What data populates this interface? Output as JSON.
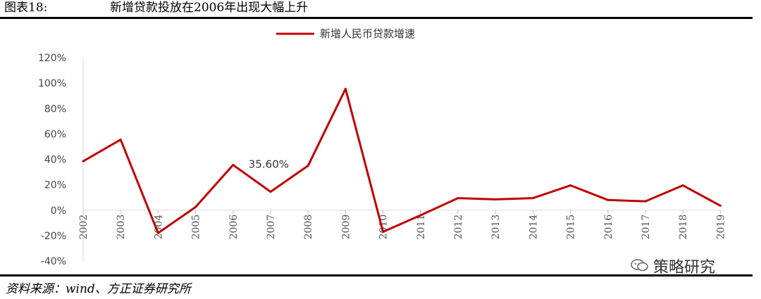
{
  "figure": {
    "label": "图表18:",
    "title": "新增贷款投放在2006年出现大幅上升"
  },
  "source": "资料来源：wind、方正证券研究所",
  "watermark": {
    "icon": "wechat-icon",
    "text": "策略研究"
  },
  "chart_data": {
    "type": "line",
    "series": [
      {
        "name": "新增人民币贷款增速",
        "color": "#c00000",
        "x": [
          "2002",
          "2003",
          "2004",
          "2005",
          "2006",
          "2007",
          "2008",
          "2009",
          "2010",
          "2011",
          "2012",
          "2013",
          "2014",
          "2015",
          "2016",
          "2017",
          "2018",
          "2019"
        ],
        "values": [
          38.5,
          55.5,
          -18,
          2.5,
          35.6,
          14.5,
          35,
          95.5,
          -17,
          -4,
          9.5,
          8.5,
          9.5,
          19.5,
          8,
          7,
          19.5,
          3.5
        ]
      }
    ],
    "y_ticks": [
      "120%",
      "100%",
      "80%",
      "60%",
      "40%",
      "20%",
      "0%",
      "-20%",
      "-40%"
    ],
    "ylim": [
      -40,
      120
    ],
    "annotation": {
      "text": "35.60%"
    },
    "legend_position": "top-center",
    "grid": false
  }
}
